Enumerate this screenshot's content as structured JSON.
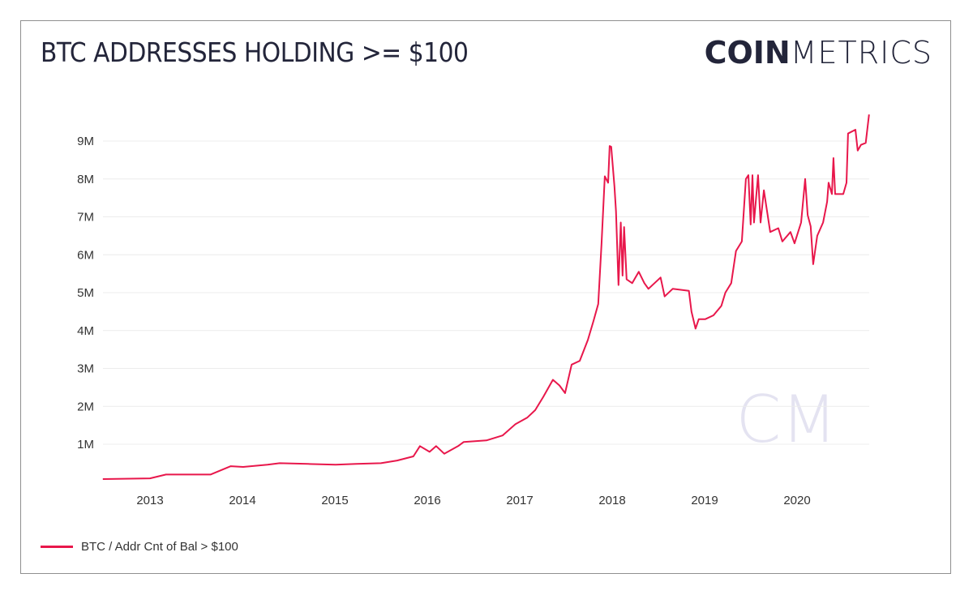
{
  "header": {
    "title": "BTC ADDRESSES HOLDING >= $100"
  },
  "logo": {
    "bold": "COIN",
    "light": "METRICS",
    "watermark": "CM"
  },
  "colors": {
    "series": "#e8174b",
    "grid": "#ececec",
    "text": "#23253a",
    "watermark": "#e4e3f1"
  },
  "chart_data": {
    "type": "line",
    "title": "BTC ADDRESSES HOLDING >= $100",
    "xlabel": "",
    "ylabel": "",
    "x_ticks": [
      "2013",
      "2014",
      "2015",
      "2016",
      "2017",
      "2018",
      "2019",
      "2020"
    ],
    "y_ticks": [
      {
        "value": 1000000,
        "label": "1M"
      },
      {
        "value": 2000000,
        "label": "2M"
      },
      {
        "value": 3000000,
        "label": "3M"
      },
      {
        "value": 4000000,
        "label": "4M"
      },
      {
        "value": 5000000,
        "label": "5M"
      },
      {
        "value": 6000000,
        "label": "6M"
      },
      {
        "value": 7000000,
        "label": "7M"
      },
      {
        "value": 8000000,
        "label": "8M"
      },
      {
        "value": 9000000,
        "label": "9M"
      }
    ],
    "xlim": [
      "2012-06-28",
      "2020-10-12"
    ],
    "ylim": [
      0,
      10000000
    ],
    "grid": true,
    "legend_position": "bottom-left",
    "series": [
      {
        "name": "BTC / Addr Cnt of Bal > $100",
        "points": [
          [
            "2012-06-28",
            80000
          ],
          [
            "2013-01-01",
            100000
          ],
          [
            "2013-03-05",
            200000
          ],
          [
            "2013-05-25",
            200000
          ],
          [
            "2013-08-28",
            200000
          ],
          [
            "2013-11-16",
            420000
          ],
          [
            "2014-01-04",
            400000
          ],
          [
            "2014-04-10",
            460000
          ],
          [
            "2014-05-28",
            500000
          ],
          [
            "2014-09-17",
            480000
          ],
          [
            "2015-01-04",
            460000
          ],
          [
            "2015-03-27",
            480000
          ],
          [
            "2015-07-02",
            500000
          ],
          [
            "2015-09-04",
            570000
          ],
          [
            "2015-11-07",
            680000
          ],
          [
            "2015-12-03",
            950000
          ],
          [
            "2016-01-10",
            800000
          ],
          [
            "2016-02-05",
            950000
          ],
          [
            "2016-03-08",
            750000
          ],
          [
            "2016-05-02",
            950000
          ],
          [
            "2016-05-24",
            1060000
          ],
          [
            "2016-08-22",
            1100000
          ],
          [
            "2016-10-25",
            1230000
          ],
          [
            "2016-12-15",
            1530000
          ],
          [
            "2017-01-30",
            1700000
          ],
          [
            "2017-03-03",
            1900000
          ],
          [
            "2017-04-04",
            2250000
          ],
          [
            "2017-05-12",
            2700000
          ],
          [
            "2017-06-07",
            2550000
          ],
          [
            "2017-06-29",
            2350000
          ],
          [
            "2017-07-25",
            3100000
          ],
          [
            "2017-08-26",
            3200000
          ],
          [
            "2017-09-27",
            3750000
          ],
          [
            "2017-10-19",
            4250000
          ],
          [
            "2017-11-07",
            4700000
          ],
          [
            "2017-11-20",
            6300000
          ],
          [
            "2017-12-03",
            8070000
          ],
          [
            "2017-12-16",
            7900000
          ],
          [
            "2017-12-22",
            8870000
          ],
          [
            "2017-12-28",
            8850000
          ],
          [
            "2018-01-10",
            7800000
          ],
          [
            "2018-01-16",
            7150000
          ],
          [
            "2018-01-26",
            5200000
          ],
          [
            "2018-02-04",
            6850000
          ],
          [
            "2018-02-11",
            5450000
          ],
          [
            "2018-02-17",
            6730000
          ],
          [
            "2018-02-27",
            5350000
          ],
          [
            "2018-03-21",
            5250000
          ],
          [
            "2018-04-16",
            5550000
          ],
          [
            "2018-05-08",
            5250000
          ],
          [
            "2018-05-24",
            5100000
          ],
          [
            "2018-07-11",
            5400000
          ],
          [
            "2018-07-27",
            4900000
          ],
          [
            "2018-08-28",
            5100000
          ],
          [
            "2018-10-31",
            5050000
          ],
          [
            "2018-11-10",
            4500000
          ],
          [
            "2018-11-26",
            4050000
          ],
          [
            "2018-12-09",
            4300000
          ],
          [
            "2019-01-04",
            4300000
          ],
          [
            "2019-02-05",
            4400000
          ],
          [
            "2019-03-08",
            4650000
          ],
          [
            "2019-03-24",
            5000000
          ],
          [
            "2019-04-16",
            5250000
          ],
          [
            "2019-05-05",
            6100000
          ],
          [
            "2019-05-28",
            6350000
          ],
          [
            "2019-06-13",
            8000000
          ],
          [
            "2019-06-23",
            8100000
          ],
          [
            "2019-07-02",
            6800000
          ],
          [
            "2019-07-09",
            8100000
          ],
          [
            "2019-07-15",
            6850000
          ],
          [
            "2019-07-31",
            8100000
          ],
          [
            "2019-08-10",
            6850000
          ],
          [
            "2019-08-23",
            7700000
          ],
          [
            "2019-09-17",
            6600000
          ],
          [
            "2019-10-19",
            6700000
          ],
          [
            "2019-11-04",
            6350000
          ],
          [
            "2019-12-06",
            6600000
          ],
          [
            "2019-12-22",
            6300000
          ],
          [
            "2020-01-17",
            6850000
          ],
          [
            "2020-02-02",
            8000000
          ],
          [
            "2020-02-12",
            7050000
          ],
          [
            "2020-02-24",
            6750000
          ],
          [
            "2020-03-05",
            5750000
          ],
          [
            "2020-03-21",
            6500000
          ],
          [
            "2020-04-13",
            6850000
          ],
          [
            "2020-04-29",
            7400000
          ],
          [
            "2020-05-05",
            7900000
          ],
          [
            "2020-05-18",
            7600000
          ],
          [
            "2020-05-24",
            8550000
          ],
          [
            "2020-05-31",
            7600000
          ],
          [
            "2020-07-02",
            7600000
          ],
          [
            "2020-07-15",
            7900000
          ],
          [
            "2020-07-21",
            9200000
          ],
          [
            "2020-08-19",
            9300000
          ],
          [
            "2020-08-28",
            8750000
          ],
          [
            "2020-09-10",
            8900000
          ],
          [
            "2020-09-29",
            8950000
          ],
          [
            "2020-10-05",
            9300000
          ],
          [
            "2020-10-12",
            9700000
          ]
        ]
      }
    ]
  }
}
